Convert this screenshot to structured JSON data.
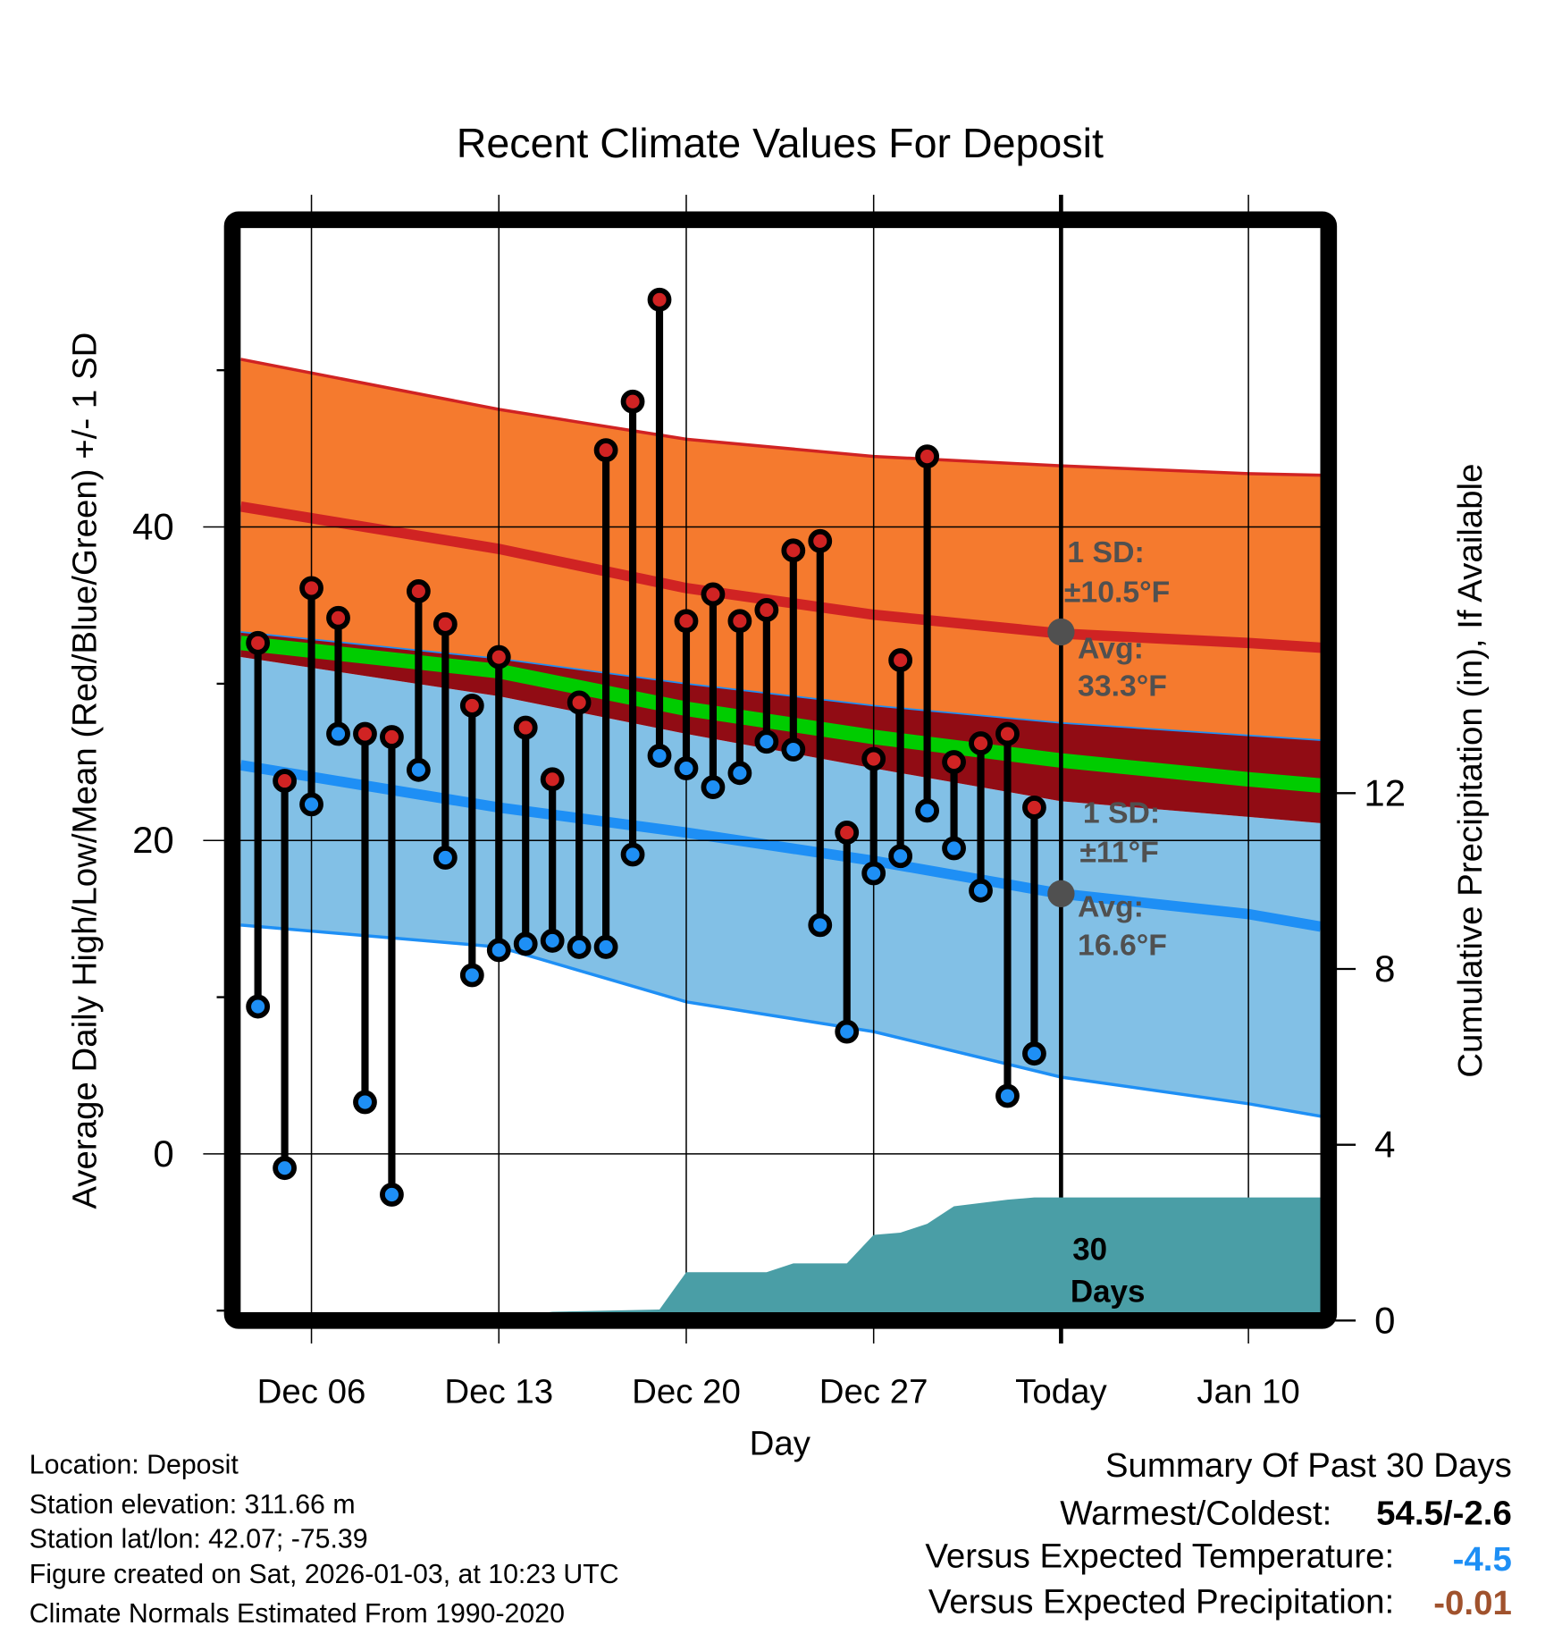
{
  "chart_data": {
    "type": "line",
    "title": "Recent Climate Values For Deposit",
    "xlabel": "Day",
    "ylabel": "Average Daily High/Low/Mean (Red/Blue/Green) +/- 1 SD",
    "y2label": "Cumulative Precipitation (in), If Available",
    "ylim": [
      -10.1,
      59.1
    ],
    "y2lim": [
      0,
      24.6
    ],
    "x_day_origin": "Dec 01",
    "xlim_days": [
      2.36,
      42.7
    ],
    "x_ticks": [
      {
        "day": 5,
        "label": "Dec 06"
      },
      {
        "day": 12,
        "label": "Dec 13"
      },
      {
        "day": 19,
        "label": "Dec 20"
      },
      {
        "day": 26,
        "label": "Dec 27"
      },
      {
        "day": 33,
        "label": "Today"
      },
      {
        "day": 40,
        "label": "Jan 10"
      }
    ],
    "y_ticks": [
      {
        "value": 0,
        "label": "0"
      },
      {
        "value": 20,
        "label": "20"
      },
      {
        "value": 40,
        "label": "40"
      }
    ],
    "y_minor_ticks": [
      -10,
      10,
      30,
      50
    ],
    "y2_ticks": [
      {
        "value": 0,
        "label": "0"
      },
      {
        "value": 4,
        "label": "4"
      },
      {
        "value": 8,
        "label": "8"
      },
      {
        "value": 12,
        "label": "12"
      }
    ],
    "grid": true,
    "observed": {
      "days": [
        3,
        4,
        5,
        6,
        7,
        8,
        9,
        10,
        11,
        12,
        13,
        14,
        15,
        16,
        17,
        18,
        19,
        20,
        21,
        22,
        23,
        24,
        25,
        26,
        27,
        28,
        29,
        30,
        31,
        32
      ],
      "dates": [
        "Dec 04",
        "Dec 05",
        "Dec 06",
        "Dec 07",
        "Dec 08",
        "Dec 09",
        "Dec 10",
        "Dec 11",
        "Dec 12",
        "Dec 13",
        "Dec 14",
        "Dec 15",
        "Dec 16",
        "Dec 17",
        "Dec 18",
        "Dec 19",
        "Dec 20",
        "Dec 21",
        "Dec 22",
        "Dec 23",
        "Dec 24",
        "Dec 25",
        "Dec 26",
        "Dec 27",
        "Dec 28",
        "Dec 29",
        "Dec 30",
        "Dec 31",
        "Jan 01",
        "Jan 02"
      ],
      "high": [
        32.6,
        23.8,
        36.1,
        34.2,
        26.8,
        26.6,
        35.9,
        33.8,
        28.6,
        31.7,
        27.2,
        23.9,
        28.8,
        44.9,
        48.0,
        54.5,
        34.0,
        35.7,
        34.0,
        34.7,
        38.5,
        39.1,
        20.5,
        25.2,
        31.5,
        44.5,
        25.0,
        26.2,
        26.8,
        22.1
      ],
      "low": [
        9.4,
        -0.9,
        22.3,
        26.8,
        3.3,
        -2.6,
        24.5,
        18.9,
        11.4,
        13.0,
        13.4,
        13.6,
        13.2,
        13.2,
        19.1,
        25.4,
        24.6,
        23.4,
        24.3,
        26.3,
        25.8,
        14.6,
        7.8,
        17.9,
        19.0,
        21.9,
        19.5,
        16.8,
        3.7,
        6.4
      ]
    },
    "normals": {
      "days": [
        2.36,
        12,
        19,
        26,
        33,
        40,
        42.7
      ],
      "high_plus_sd": [
        50.7,
        47.5,
        45.6,
        44.5,
        43.9,
        43.4,
        43.3
      ],
      "high_mean": [
        41.3,
        38.6,
        36.1,
        34.4,
        33.2,
        32.6,
        32.3
      ],
      "high_minus_sd_band": [
        33.3,
        31.6,
        30.0,
        28.6,
        27.5,
        26.7,
        26.4
      ],
      "mean": [
        32.6,
        30.8,
        28.4,
        26.6,
        25.1,
        23.9,
        23.5
      ],
      "low_plus_sd_band": [
        31.7,
        29.2,
        26.8,
        24.6,
        22.5,
        21.5,
        21.1
      ],
      "low_mean": [
        24.8,
        22.1,
        20.5,
        18.7,
        16.6,
        15.3,
        14.5
      ],
      "low_minus_sd": [
        14.6,
        13.2,
        9.7,
        7.8,
        4.9,
        3.2,
        2.4
      ]
    },
    "precipitation": {
      "days": [
        2.36,
        8,
        9,
        12,
        14,
        18,
        19,
        22,
        23,
        25,
        26,
        27,
        28,
        29,
        31,
        32,
        33,
        42.7
      ],
      "cumulative_in": [
        0,
        0,
        0.02,
        0.05,
        0.2,
        0.25,
        1.1,
        1.1,
        1.3,
        1.3,
        1.95,
        2.0,
        2.2,
        2.6,
        2.75,
        2.8,
        2.8,
        2.8
      ]
    },
    "annotations": {
      "high_sd": [
        "1 SD:",
        "±10.5°F"
      ],
      "high_avg": [
        "Avg:",
        "33.3°F"
      ],
      "low_sd": [
        "1 SD:",
        "±11°F"
      ],
      "low_avg": [
        "Avg:",
        "16.6°F"
      ],
      "days_window": [
        "30",
        "Days"
      ],
      "high_avg_value": 33.3,
      "low_avg_value": 16.6
    },
    "colors": {
      "orange": "#f57a2e",
      "red": "#d02323",
      "darkred": "#910c14",
      "green": "#00cc00",
      "lightblue": "#82c0e6",
      "blue": "#1e8ff5",
      "teal": "#4a9ea6",
      "annot": "#505050"
    }
  },
  "footer": {
    "location": "Location: Deposit",
    "elevation": "Station elevation: 311.66 m",
    "latlon": "Station lat/lon: 42.07; -75.39",
    "created": "Figure created on Sat, 2026-01-03, at 10:23 UTC",
    "normals": "Climate Normals Estimated From 1990-2020"
  },
  "summary": {
    "title": "Summary Of Past 30 Days",
    "warm_cold_label": "Warmest/Coldest:",
    "warm_cold_value": "54.5/-2.6",
    "temp_label": "Versus Expected Temperature:",
    "temp_value": "-4.5",
    "temp_color": "#1e8ff5",
    "precip_label": "Versus Expected Precipitation:",
    "precip_value": "-0.01",
    "precip_color": "#a0522d"
  }
}
